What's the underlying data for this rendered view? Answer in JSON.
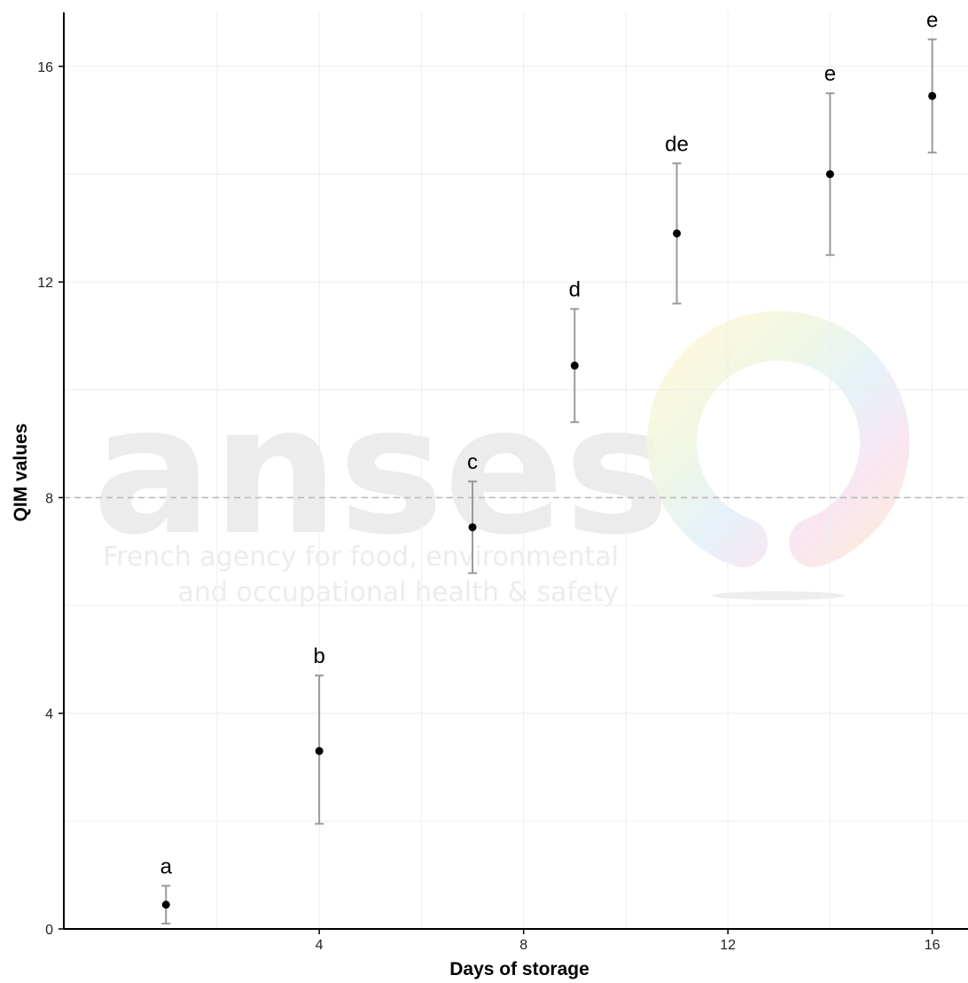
{
  "chart_data": {
    "type": "scatter",
    "title": "",
    "xlabel": "Days of storage",
    "ylabel": "QIM values",
    "xlim": [
      -1,
      16.7
    ],
    "ylim": [
      0,
      17
    ],
    "x_ticks": [
      4,
      8,
      12,
      16
    ],
    "y_ticks": [
      0,
      4,
      8,
      12,
      16
    ],
    "grid": true,
    "reference_line": {
      "y": 8,
      "style": "dashed"
    },
    "points": [
      {
        "x": 1,
        "y": 0.45,
        "err_low": 0.1,
        "err_high": 0.8,
        "label": "a"
      },
      {
        "x": 4,
        "y": 3.3,
        "err_low": 1.95,
        "err_high": 4.7,
        "label": "b"
      },
      {
        "x": 7,
        "y": 7.45,
        "err_low": 6.6,
        "err_high": 8.3,
        "label": "c"
      },
      {
        "x": 9,
        "y": 10.45,
        "err_low": 9.4,
        "err_high": 11.5,
        "label": "d"
      },
      {
        "x": 11,
        "y": 12.9,
        "err_low": 11.6,
        "err_high": 14.2,
        "label": "de"
      },
      {
        "x": 14,
        "y": 14.0,
        "err_low": 12.5,
        "err_high": 15.5,
        "label": "e"
      },
      {
        "x": 16,
        "y": 15.45,
        "err_low": 14.4,
        "err_high": 16.5,
        "label": "e"
      }
    ],
    "colors": {
      "point": "#000000",
      "errorbar": "#999999",
      "grid": "#eeeeee",
      "axis": "#000000",
      "reference_line": "#bbbbbb"
    }
  },
  "watermark": {
    "logo_text": "anses",
    "tagline_line1": "French agency for food, environmental",
    "tagline_line2": "and occupational health & safety"
  }
}
